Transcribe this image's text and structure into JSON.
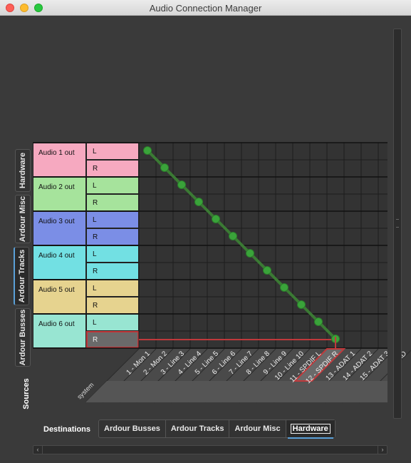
{
  "window": {
    "title": "Audio Connection Manager"
  },
  "source_tabs": [
    {
      "label": "Hardware",
      "active": false
    },
    {
      "label": "Ardour Misc",
      "active": false
    },
    {
      "label": "Ardour Tracks",
      "active": true
    },
    {
      "label": "Ardour Busses",
      "active": false
    }
  ],
  "sources_label": "Sources",
  "destinations_label": "Destinations",
  "destination_tabs": [
    {
      "label": "Ardour Busses",
      "active": false
    },
    {
      "label": "Ardour Tracks",
      "active": false
    },
    {
      "label": "Ardour Misc",
      "active": false
    },
    {
      "label": "Hardware",
      "active": true
    }
  ],
  "buses": [
    {
      "name": "Audio 1 out",
      "color": "#f6a9c0",
      "channels": [
        "L",
        "R"
      ]
    },
    {
      "name": "Audio 2 out",
      "color": "#a6e39c",
      "channels": [
        "L",
        "R"
      ]
    },
    {
      "name": "Audio 3 out",
      "color": "#7b8ee6",
      "channels": [
        "L",
        "R"
      ]
    },
    {
      "name": "Audio 4 out",
      "color": "#72e0e3",
      "channels": [
        "L",
        "R"
      ]
    },
    {
      "name": "Audio 5 out",
      "color": "#e6d38f",
      "channels": [
        "L",
        "R"
      ]
    },
    {
      "name": "Audio 6 out",
      "color": "#98e5d2",
      "channels": [
        "L",
        "R"
      ]
    }
  ],
  "selected_source_channel": "Audio 6 out R",
  "destination_group": "system",
  "destination_ports": [
    "1 - Mon 1",
    "2 - Mon 2",
    "3 - Line 3",
    "4 - Line 4",
    "5 - Line 5",
    "6 - Line 6",
    "7 - Line 7",
    "8 - Line 8",
    "9 - Line 9",
    "10 - Line 10",
    "11 - SPDIF L",
    "12 - SPDIF R",
    "13 - ADAT 1",
    "14 - ADAT 2",
    "15 - ADAT 3",
    "16 - AD"
  ],
  "selected_destination_port": "12 - SPDIF R",
  "connections": [
    {
      "source_row": 0,
      "dest_col": 0
    },
    {
      "source_row": 1,
      "dest_col": 1
    },
    {
      "source_row": 2,
      "dest_col": 2
    },
    {
      "source_row": 3,
      "dest_col": 3
    },
    {
      "source_row": 4,
      "dest_col": 4
    },
    {
      "source_row": 5,
      "dest_col": 5
    },
    {
      "source_row": 6,
      "dest_col": 6
    },
    {
      "source_row": 7,
      "dest_col": 7
    },
    {
      "source_row": 8,
      "dest_col": 8
    },
    {
      "source_row": 9,
      "dest_col": 9
    },
    {
      "source_row": 10,
      "dest_col": 10
    },
    {
      "source_row": 11,
      "dest_col": 11
    }
  ],
  "colors": {
    "connection": "#3aa33a",
    "selection": "#c0393b",
    "tab_accent": "#5aa0d8"
  }
}
